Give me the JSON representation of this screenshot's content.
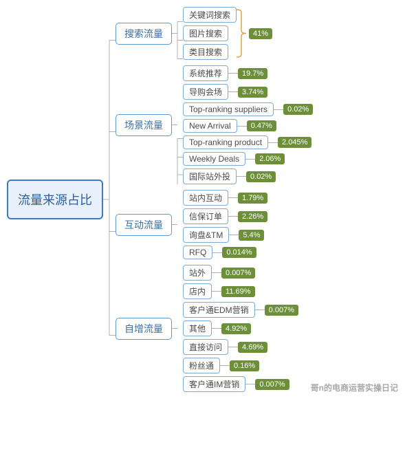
{
  "type": "tree",
  "title": "流量来源占比",
  "colors": {
    "root_border": "#3b7bbd",
    "root_text": "#2f5f99",
    "root_bg": "#e8f0fb",
    "l2_border": "#5a9bd5",
    "l2_text": "#3b6fa3",
    "l2_bg": "#ffffff",
    "l3_border": "#7da9d6",
    "l3_text": "#4a4a4a",
    "l3_bg": "#ffffff",
    "pct_bg": "#6d8f3a",
    "pct_text": "#ffffff",
    "connector": "#b0b0b0",
    "bracket": "#d9a84a",
    "background": "#ffffff"
  },
  "typography": {
    "root_fontsize": 18,
    "l2_fontsize": 14,
    "l3_fontsize": 12,
    "pct_fontsize": 11
  },
  "layout": {
    "root_width": 140,
    "connector_w1": 18,
    "connector_w2": 16,
    "connector_w3": 14,
    "bracket_w": 14,
    "row_gap_l2": 8,
    "row_gap_l3": 4,
    "border_radius_root": 6,
    "border_radius_l2": 5,
    "border_radius_l3": 4,
    "border_radius_pct": 3
  },
  "nodes": [
    {
      "label": "搜索流量",
      "group_pct": "41%",
      "children": [
        {
          "label": "关键词搜索"
        },
        {
          "label": "图片搜索"
        },
        {
          "label": "类目搜索"
        }
      ]
    },
    {
      "label": "场景流量",
      "children": [
        {
          "label": "系统推荐",
          "pct": "19.7%"
        },
        {
          "label": "导购会场",
          "pct": "3.74%"
        },
        {
          "label": "Top-ranking suppliers",
          "pct": "0.02%"
        },
        {
          "label": "New Arrival",
          "pct": "0.47%"
        },
        {
          "label": "Top-ranking product",
          "pct": "2.045%"
        },
        {
          "label": "Weekly Deals",
          "pct": "2.06%"
        },
        {
          "label": "国际站外投",
          "pct": "0.02%"
        }
      ]
    },
    {
      "label": "互动流量",
      "children": [
        {
          "label": "站内互动",
          "pct": "1.79%"
        },
        {
          "label": "信保订单",
          "pct": "2.26%"
        },
        {
          "label": "询盘&TM",
          "pct": "5.4%"
        },
        {
          "label": "RFQ",
          "pct": "0.014%"
        }
      ]
    },
    {
      "label": "自增流量",
      "children": [
        {
          "label": "站外",
          "pct": "0.007%"
        },
        {
          "label": "店内",
          "pct": "11.69%"
        },
        {
          "label": "客户通EDM营销",
          "pct": "0.007%"
        },
        {
          "label": "其他",
          "pct": "4.92%"
        },
        {
          "label": "直接访问",
          "pct": "4.69%"
        },
        {
          "label": "粉丝通",
          "pct": "0.16%"
        },
        {
          "label": "客户通IM营销",
          "pct": "0.007%"
        }
      ]
    }
  ],
  "watermark": "哥n的电商运营实操日记"
}
